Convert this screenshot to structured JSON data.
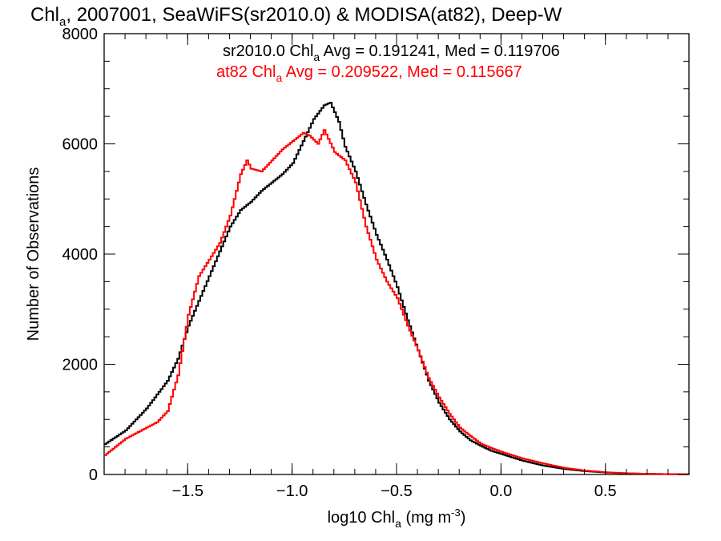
{
  "chart_data": {
    "type": "line",
    "title_parts": [
      "Chl",
      "a",
      ", 2007001, SeaWiFS(sr2010.0) & MODISA(at82), Deep-W"
    ],
    "xlabel_parts": [
      "log10 Chl",
      "a",
      " (mg m",
      "-3",
      ")"
    ],
    "ylabel": "Number of Observations",
    "xlim": [
      -1.9,
      0.9
    ],
    "ylim": [
      0,
      8000
    ],
    "x_ticks": [
      {
        "value": -1.5,
        "label": "−1.5"
      },
      {
        "value": -1.0,
        "label": "−1.0"
      },
      {
        "value": -0.5,
        "label": "−0.5"
      },
      {
        "value": 0.0,
        "label": "0.0"
      },
      {
        "value": 0.5,
        "label": "0.5"
      }
    ],
    "y_ticks": [
      {
        "value": 0,
        "label": "0"
      },
      {
        "value": 2000,
        "label": "2000"
      },
      {
        "value": 4000,
        "label": "4000"
      },
      {
        "value": 6000,
        "label": "6000"
      },
      {
        "value": 8000,
        "label": "8000"
      }
    ],
    "annotations": [
      {
        "parts": [
          "sr2010.0 Chl",
          "a",
          " Avg = 0.191241, Med = 0.119706"
        ],
        "color": "#000000"
      },
      {
        "parts": [
          "at82 Chl",
          "a",
          " Avg = 0.209522, Med = 0.115667"
        ],
        "color": "#ff0000"
      }
    ],
    "series": [
      {
        "color": "#000000",
        "x": [
          -1.9,
          -1.8,
          -1.7,
          -1.6,
          -1.55,
          -1.5,
          -1.45,
          -1.4,
          -1.35,
          -1.3,
          -1.25,
          -1.2,
          -1.15,
          -1.1,
          -1.05,
          -1.0,
          -0.95,
          -0.9,
          -0.85,
          -0.82,
          -0.78,
          -0.75,
          -0.7,
          -0.65,
          -0.6,
          -0.55,
          -0.5,
          -0.45,
          -0.4,
          -0.35,
          -0.3,
          -0.25,
          -0.2,
          -0.15,
          -0.1,
          -0.05,
          0.0,
          0.1,
          0.2,
          0.3,
          0.4,
          0.5,
          0.6,
          0.7,
          0.8,
          0.9
        ],
        "y": [
          550,
          800,
          1200,
          1700,
          2100,
          2700,
          3150,
          3600,
          4050,
          4500,
          4800,
          4950,
          5150,
          5300,
          5450,
          5650,
          6050,
          6450,
          6700,
          6750,
          6400,
          5950,
          5500,
          4900,
          4350,
          3900,
          3400,
          2800,
          2250,
          1700,
          1300,
          1000,
          780,
          620,
          520,
          430,
          370,
          250,
          160,
          100,
          60,
          35,
          20,
          12,
          6,
          3
        ]
      },
      {
        "color": "#ff0000",
        "x": [
          -1.9,
          -1.8,
          -1.7,
          -1.65,
          -1.6,
          -1.55,
          -1.5,
          -1.45,
          -1.4,
          -1.35,
          -1.3,
          -1.25,
          -1.22,
          -1.2,
          -1.15,
          -1.1,
          -1.05,
          -1.0,
          -0.95,
          -0.92,
          -0.88,
          -0.85,
          -0.8,
          -0.75,
          -0.7,
          -0.65,
          -0.6,
          -0.55,
          -0.5,
          -0.45,
          -0.4,
          -0.35,
          -0.3,
          -0.25,
          -0.2,
          -0.15,
          -0.1,
          -0.05,
          0.0,
          0.1,
          0.2,
          0.3,
          0.4,
          0.5,
          0.6,
          0.7,
          0.8,
          0.9
        ],
        "y": [
          350,
          650,
          850,
          950,
          1150,
          1800,
          2900,
          3600,
          3900,
          4200,
          4700,
          5450,
          5700,
          5550,
          5500,
          5700,
          5900,
          6050,
          6200,
          6150,
          6000,
          6250,
          5850,
          5700,
          5300,
          4500,
          3900,
          3500,
          3200,
          2700,
          2250,
          1750,
          1400,
          1100,
          850,
          700,
          560,
          480,
          410,
          290,
          200,
          120,
          70,
          40,
          22,
          12,
          6,
          3
        ]
      }
    ]
  }
}
